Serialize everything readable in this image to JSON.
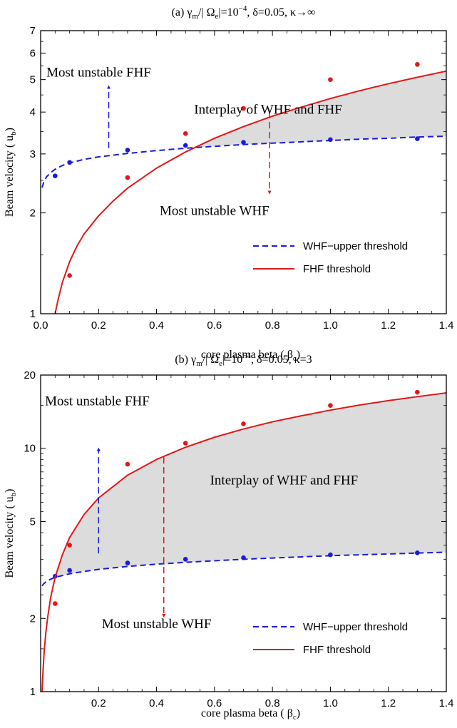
{
  "chart_data": [
    {
      "type": "line",
      "title_parts": {
        "prefix": "(a) γ",
        "sub1": "m",
        "mid1": "/| Ω",
        "sub2": "e",
        "mid2": "|=10",
        "sup": "−4",
        "suffix": ", δ=0.05, κ→∞"
      },
      "xlabel": "core plasma beta ( βc)",
      "xlabel_parts": {
        "main": "core plasma beta ( β",
        "sub": "c",
        "end": ")"
      },
      "ylabel": "Beam velocity ( ub)",
      "ylabel_parts": {
        "main": "Beam velocity ( u",
        "sub": "b",
        "end": ")"
      },
      "xlim": [
        0.0,
        1.4
      ],
      "ylim": [
        1,
        7
      ],
      "yscale": "log",
      "xticks": [
        "0.0",
        "0.2",
        "0.4",
        "0.6",
        "0.8",
        "1.0",
        "1.2",
        "1.4"
      ],
      "yticks": [
        "1",
        "2",
        "3",
        "4",
        "5",
        "6",
        "7"
      ],
      "legend_position": "lower-right",
      "series": [
        {
          "name": "WHF−upper threshold",
          "style": "dashed",
          "color": "#1a1adf",
          "curve": [
            [
              0.005,
              2.38
            ],
            [
              0.01,
              2.46
            ],
            [
              0.02,
              2.56
            ],
            [
              0.035,
              2.64
            ],
            [
              0.05,
              2.7
            ],
            [
              0.075,
              2.77
            ],
            [
              0.1,
              2.82
            ],
            [
              0.15,
              2.89
            ],
            [
              0.2,
              2.94
            ],
            [
              0.3,
              3.01
            ],
            [
              0.4,
              3.07
            ],
            [
              0.5,
              3.12
            ],
            [
              0.6,
              3.16
            ],
            [
              0.7,
              3.2
            ],
            [
              0.8,
              3.23
            ],
            [
              0.9,
              3.26
            ],
            [
              1.0,
              3.29
            ],
            [
              1.1,
              3.32
            ],
            [
              1.2,
              3.34
            ],
            [
              1.3,
              3.37
            ],
            [
              1.4,
              3.39
            ]
          ],
          "points": [
            [
              0.05,
              2.58
            ],
            [
              0.1,
              2.83
            ],
            [
              0.3,
              3.08
            ],
            [
              0.5,
              3.18
            ],
            [
              0.7,
              3.25
            ],
            [
              1.0,
              3.31
            ],
            [
              1.3,
              3.33
            ]
          ]
        },
        {
          "name": "FHF threshold",
          "style": "solid",
          "color": "#e01818",
          "curve": [
            [
              0.05,
              1.0
            ],
            [
              0.06,
              1.1
            ],
            [
              0.075,
              1.24
            ],
            [
              0.1,
              1.43
            ],
            [
              0.125,
              1.59
            ],
            [
              0.15,
              1.73
            ],
            [
              0.2,
              1.96
            ],
            [
              0.25,
              2.17
            ],
            [
              0.3,
              2.37
            ],
            [
              0.4,
              2.72
            ],
            [
              0.5,
              3.04
            ],
            [
              0.6,
              3.34
            ],
            [
              0.7,
              3.62
            ],
            [
              0.8,
              3.89
            ],
            [
              0.9,
              4.14
            ],
            [
              1.0,
              4.39
            ],
            [
              1.1,
              4.63
            ],
            [
              1.2,
              4.86
            ],
            [
              1.3,
              5.08
            ],
            [
              1.4,
              5.3
            ]
          ],
          "points": [
            [
              0.1,
              1.3
            ],
            [
              0.3,
              2.55
            ],
            [
              0.5,
              3.45
            ],
            [
              0.7,
              4.1
            ],
            [
              1.0,
              5.0
            ],
            [
              1.3,
              5.55
            ]
          ]
        }
      ],
      "annotations": [
        {
          "text": "Most unstable FHF",
          "x": 0.02,
          "y": 5.1
        },
        {
          "text": "Interplay of WHF and FHF",
          "x": 0.785,
          "y": 3.95
        },
        {
          "text": "Most unstable WHF",
          "x": 0.6,
          "y": 1.97
        }
      ],
      "arrows": [
        {
          "color": "#1a1adf",
          "x": 0.235,
          "from": 3.12,
          "to": 4.75
        },
        {
          "color": "#e01818",
          "x": 0.79,
          "from": 4.0,
          "to": 2.3
        }
      ]
    },
    {
      "type": "line",
      "title_parts": {
        "prefix": "(b) γ",
        "sub1": "m",
        "mid1": "/| Ω",
        "sub2": "e",
        "mid2": "|=10",
        "sup": "−4",
        "suffix": ", δ=0.05, κ=3"
      },
      "xlabel": "core plasma beta ( βc)",
      "xlabel_parts": {
        "main": "core plasma beta ( β",
        "sub": "c",
        "end": ")"
      },
      "ylabel": "Beam velocity ( ub)",
      "ylabel_parts": {
        "main": "Beam velocity ( u",
        "sub": "b",
        "end": ")"
      },
      "xlim": [
        0.0,
        1.4
      ],
      "ylim": [
        1,
        20
      ],
      "yscale": "log",
      "xticks": [
        "0.2",
        "0.4",
        "0.6",
        "0.8",
        "1.0",
        "1.2",
        "1.4"
      ],
      "yticks": [
        "1",
        "2",
        "5",
        "10",
        "20"
      ],
      "legend_position": "lower-right",
      "series": [
        {
          "name": "WHF−upper threshold",
          "style": "dashed",
          "color": "#1a1adf",
          "curve": [
            [
              0.005,
              2.72
            ],
            [
              0.01,
              2.77
            ],
            [
              0.02,
              2.84
            ],
            [
              0.035,
              2.9
            ],
            [
              0.05,
              2.95
            ],
            [
              0.075,
              3.0
            ],
            [
              0.1,
              3.05
            ],
            [
              0.15,
              3.12
            ],
            [
              0.2,
              3.18
            ],
            [
              0.3,
              3.27
            ],
            [
              0.4,
              3.34
            ],
            [
              0.5,
              3.4
            ],
            [
              0.6,
              3.45
            ],
            [
              0.7,
              3.5
            ],
            [
              0.8,
              3.54
            ],
            [
              0.9,
              3.58
            ],
            [
              1.0,
              3.62
            ],
            [
              1.1,
              3.65
            ],
            [
              1.2,
              3.68
            ],
            [
              1.3,
              3.71
            ],
            [
              1.4,
              3.74
            ]
          ],
          "points": [
            [
              0.05,
              2.98
            ],
            [
              0.1,
              3.15
            ],
            [
              0.3,
              3.38
            ],
            [
              0.5,
              3.5
            ],
            [
              0.7,
              3.55
            ],
            [
              1.0,
              3.65
            ],
            [
              1.3,
              3.72
            ]
          ]
        },
        {
          "name": "FHF threshold",
          "style": "solid",
          "color": "#e01818",
          "curve": [
            [
              0.005,
              1.0
            ],
            [
              0.008,
              1.2
            ],
            [
              0.012,
              1.45
            ],
            [
              0.018,
              1.75
            ],
            [
              0.025,
              2.05
            ],
            [
              0.035,
              2.45
            ],
            [
              0.05,
              2.95
            ],
            [
              0.075,
              3.65
            ],
            [
              0.1,
              4.3
            ],
            [
              0.15,
              5.35
            ],
            [
              0.2,
              6.25
            ],
            [
              0.3,
              7.75
            ],
            [
              0.4,
              9.0
            ],
            [
              0.5,
              10.1
            ],
            [
              0.6,
              11.1
            ],
            [
              0.7,
              12.0
            ],
            [
              0.8,
              12.85
            ],
            [
              0.9,
              13.6
            ],
            [
              1.0,
              14.35
            ],
            [
              1.1,
              15.05
            ],
            [
              1.2,
              15.7
            ],
            [
              1.3,
              16.3
            ],
            [
              1.4,
              16.9
            ]
          ],
          "points": [
            [
              0.05,
              2.3
            ],
            [
              0.1,
              4.0
            ],
            [
              0.3,
              8.6
            ],
            [
              0.5,
              10.5
            ],
            [
              0.7,
              12.6
            ],
            [
              1.0,
              15.0
            ],
            [
              1.3,
              17.0
            ]
          ]
        }
      ],
      "annotations": [
        {
          "text": "Most unstable FHF",
          "x": 0.015,
          "y": 15.0
        },
        {
          "text": "Interplay of WHF and FHF",
          "x": 0.84,
          "y": 7.1
        },
        {
          "text": "Most unstable WHF",
          "x": 0.4,
          "y": 1.82
        }
      ],
      "arrows": [
        {
          "color": "#1a1adf",
          "x": 0.2,
          "from": 3.7,
          "to": 9.9
        },
        {
          "color": "#e01818",
          "x": 0.425,
          "from": 9.2,
          "to": 2.05
        }
      ]
    }
  ]
}
